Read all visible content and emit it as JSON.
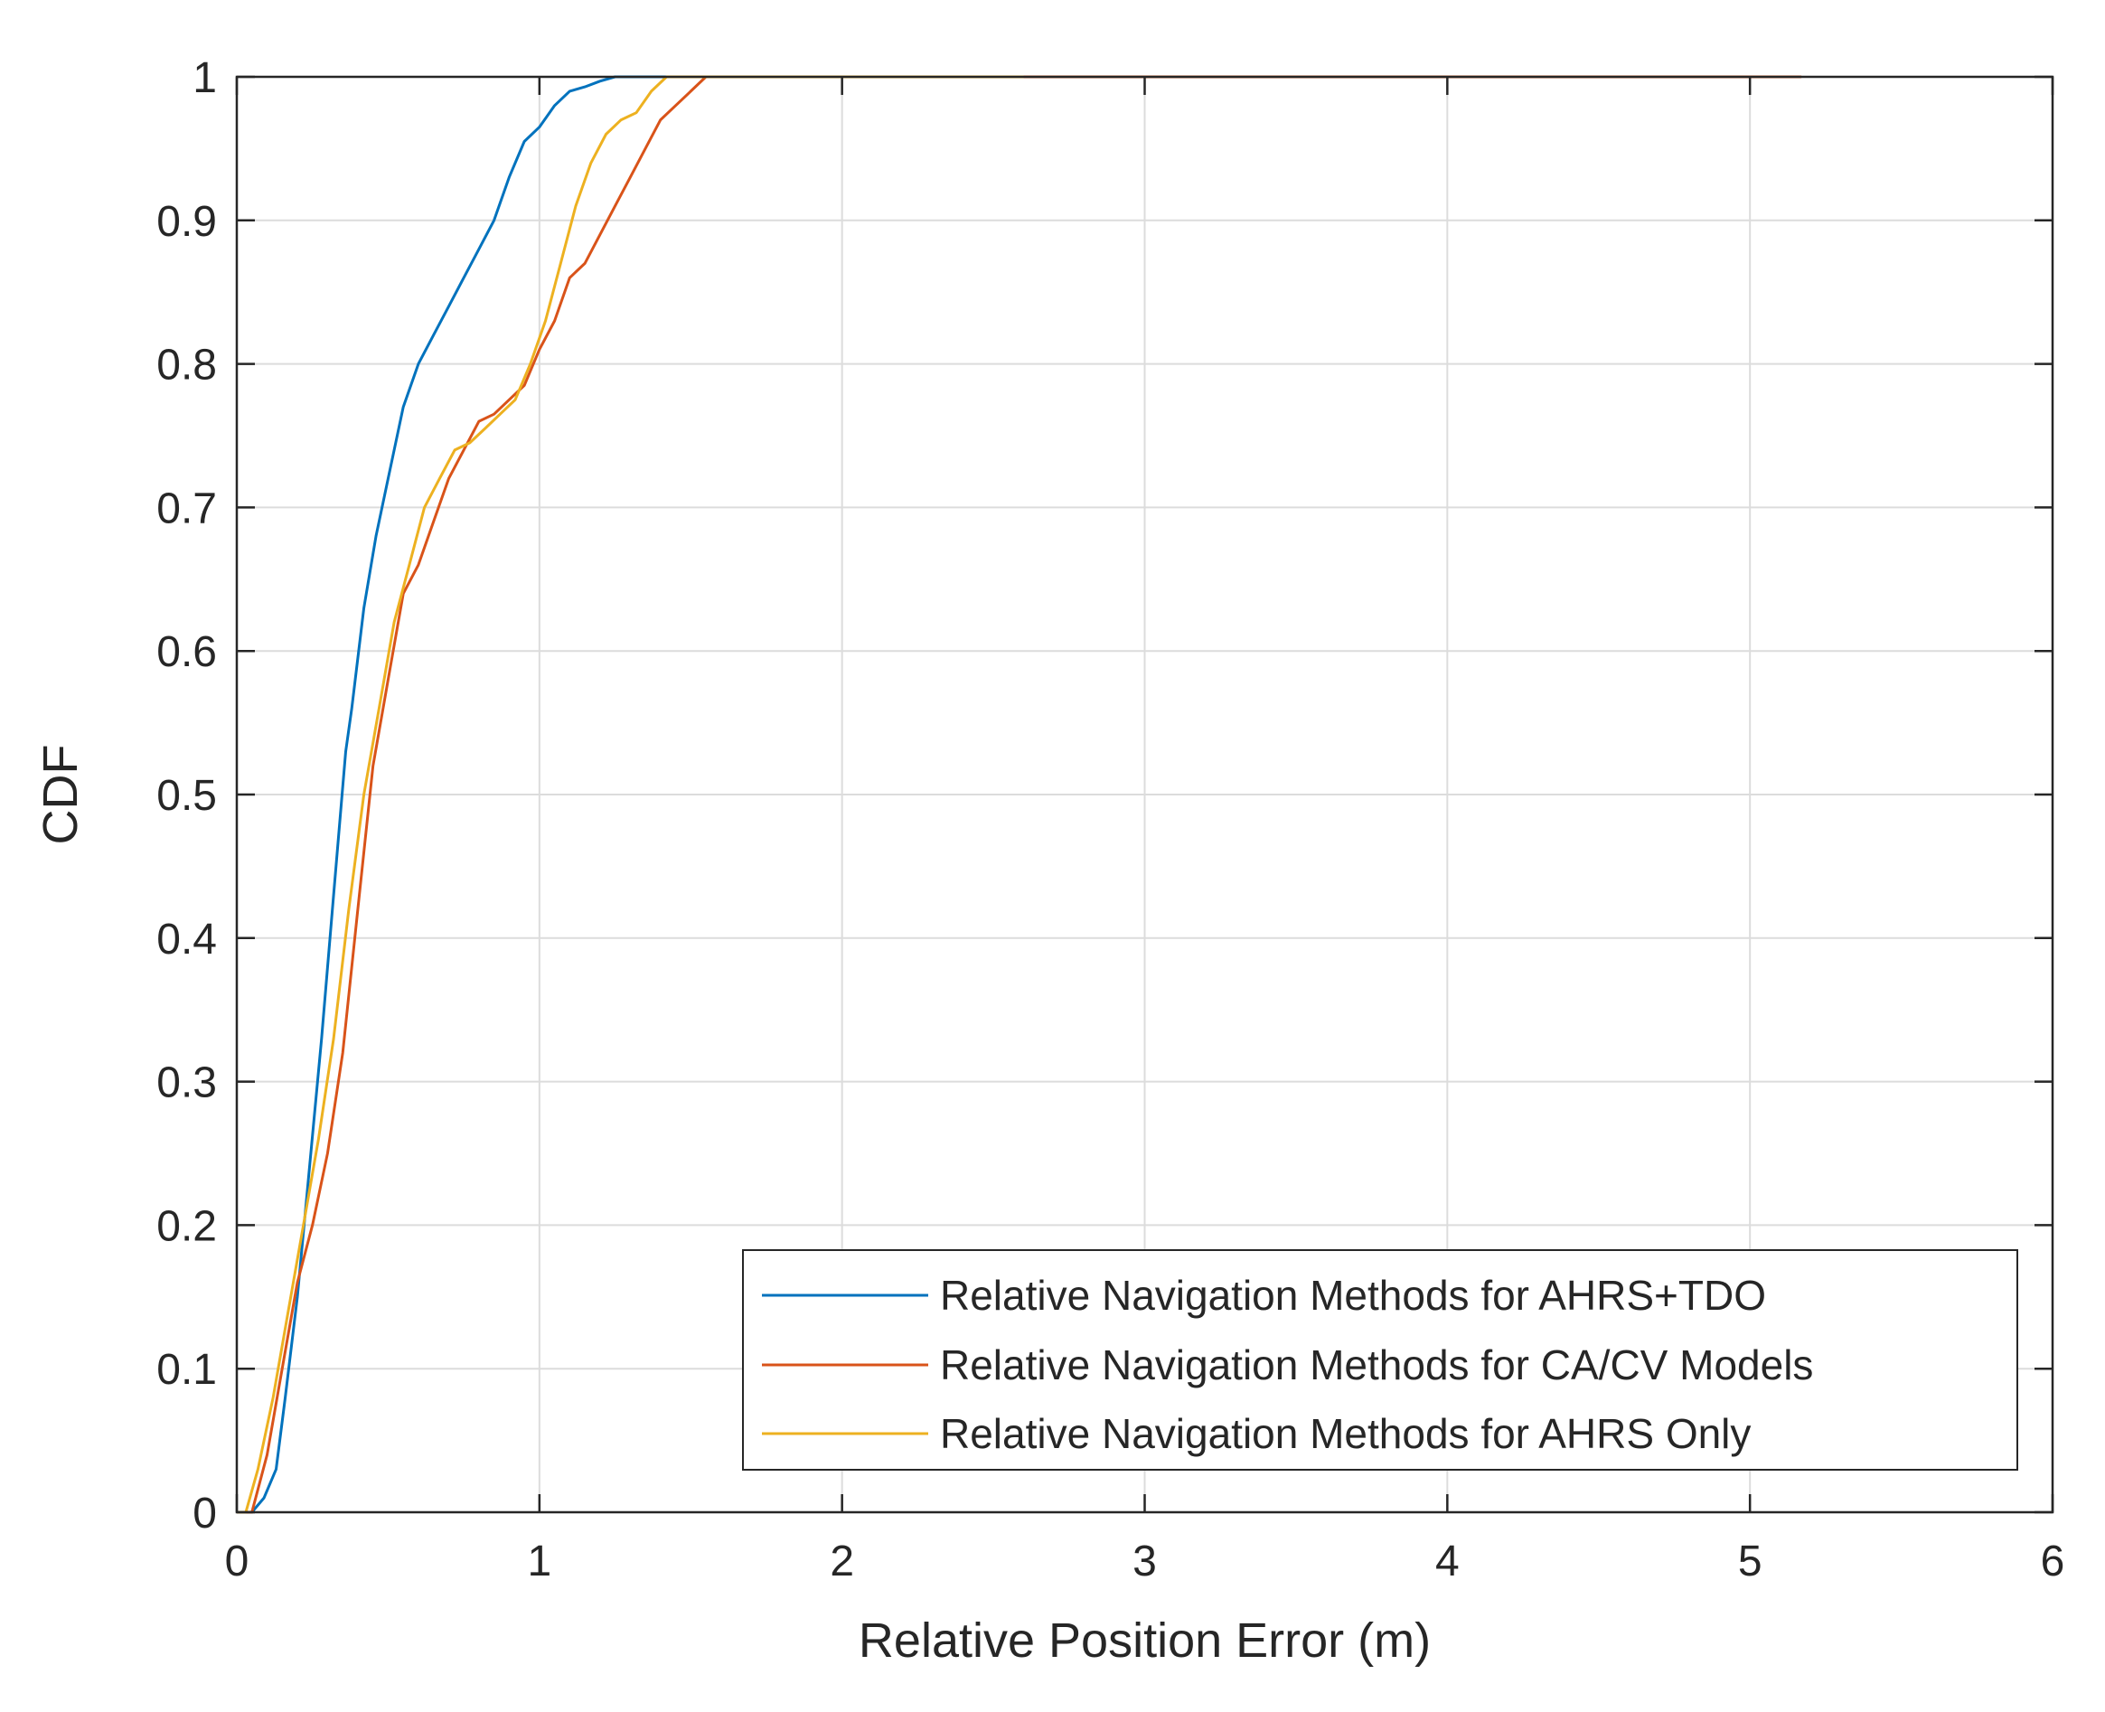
{
  "chart_data": {
    "type": "line",
    "title": "",
    "xlabel": "Relative Position Error (m)",
    "ylabel": "CDF",
    "xlim": [
      0,
      6
    ],
    "ylim": [
      0,
      1
    ],
    "xticks": [
      0,
      1,
      2,
      3,
      4,
      5,
      6
    ],
    "xtick_labels": [
      "0",
      "1",
      "2",
      "3",
      "4",
      "5",
      "6"
    ],
    "yticks": [
      0,
      0.1,
      0.2,
      0.3,
      0.4,
      0.5,
      0.6,
      0.7,
      0.8,
      0.9,
      1
    ],
    "ytick_labels": [
      "0",
      "0.1",
      "0.2",
      "0.3",
      "0.4",
      "0.5",
      "0.6",
      "0.7",
      "0.8",
      "0.9",
      "1"
    ],
    "grid": true,
    "legend_position": "bottom-right",
    "series": [
      {
        "name": "Relative Navigation Methods for AHRS+TDO",
        "color": "#0072BD",
        "x": [
          0,
          0.05,
          0.09,
          0.13,
          0.16,
          0.2,
          0.24,
          0.28,
          0.32,
          0.36,
          0.38,
          0.42,
          0.46,
          0.5,
          0.55,
          0.6,
          0.65,
          0.7,
          0.75,
          0.8,
          0.85,
          0.9,
          0.95,
          1.0,
          1.05,
          1.1,
          1.15,
          1.2,
          1.25,
          1.3,
          1.35,
          2.6
        ],
        "y": [
          0,
          0,
          0.01,
          0.03,
          0.08,
          0.15,
          0.24,
          0.33,
          0.43,
          0.53,
          0.56,
          0.63,
          0.68,
          0.72,
          0.77,
          0.8,
          0.82,
          0.84,
          0.86,
          0.88,
          0.9,
          0.93,
          0.955,
          0.965,
          0.98,
          0.99,
          0.993,
          0.997,
          1.0,
          1.0,
          1.0,
          1.0
        ]
      },
      {
        "name": "Relative Navigation Methods for CA/CV Models",
        "color": "#D95319",
        "x": [
          0,
          0.05,
          0.1,
          0.15,
          0.2,
          0.25,
          0.3,
          0.35,
          0.4,
          0.45,
          0.5,
          0.55,
          0.6,
          0.65,
          0.7,
          0.75,
          0.8,
          0.85,
          0.9,
          0.95,
          1.0,
          1.05,
          1.1,
          1.15,
          1.2,
          1.25,
          1.3,
          1.35,
          1.4,
          1.45,
          1.5,
          1.55,
          2.6,
          5.17
        ],
        "y": [
          0,
          0,
          0.04,
          0.1,
          0.16,
          0.2,
          0.25,
          0.32,
          0.42,
          0.52,
          0.58,
          0.64,
          0.66,
          0.69,
          0.72,
          0.74,
          0.76,
          0.765,
          0.775,
          0.785,
          0.81,
          0.83,
          0.86,
          0.87,
          0.89,
          0.91,
          0.93,
          0.95,
          0.97,
          0.98,
          0.99,
          1.0,
          1.0,
          1.0
        ]
      },
      {
        "name": "Relative Navigation Methods for AHRS Only",
        "color": "#EDB120",
        "x": [
          0,
          0.03,
          0.07,
          0.12,
          0.17,
          0.22,
          0.27,
          0.32,
          0.37,
          0.42,
          0.47,
          0.52,
          0.57,
          0.62,
          0.67,
          0.72,
          0.77,
          0.82,
          0.87,
          0.92,
          0.97,
          1.02,
          1.07,
          1.12,
          1.17,
          1.22,
          1.27,
          1.32,
          1.37,
          1.42,
          1.47,
          2.6
        ],
        "y": [
          0,
          0,
          0.03,
          0.08,
          0.14,
          0.2,
          0.26,
          0.33,
          0.42,
          0.5,
          0.56,
          0.62,
          0.66,
          0.7,
          0.72,
          0.74,
          0.745,
          0.755,
          0.765,
          0.775,
          0.8,
          0.83,
          0.87,
          0.91,
          0.94,
          0.96,
          0.97,
          0.975,
          0.99,
          1.0,
          1.0,
          1.0
        ]
      }
    ]
  }
}
